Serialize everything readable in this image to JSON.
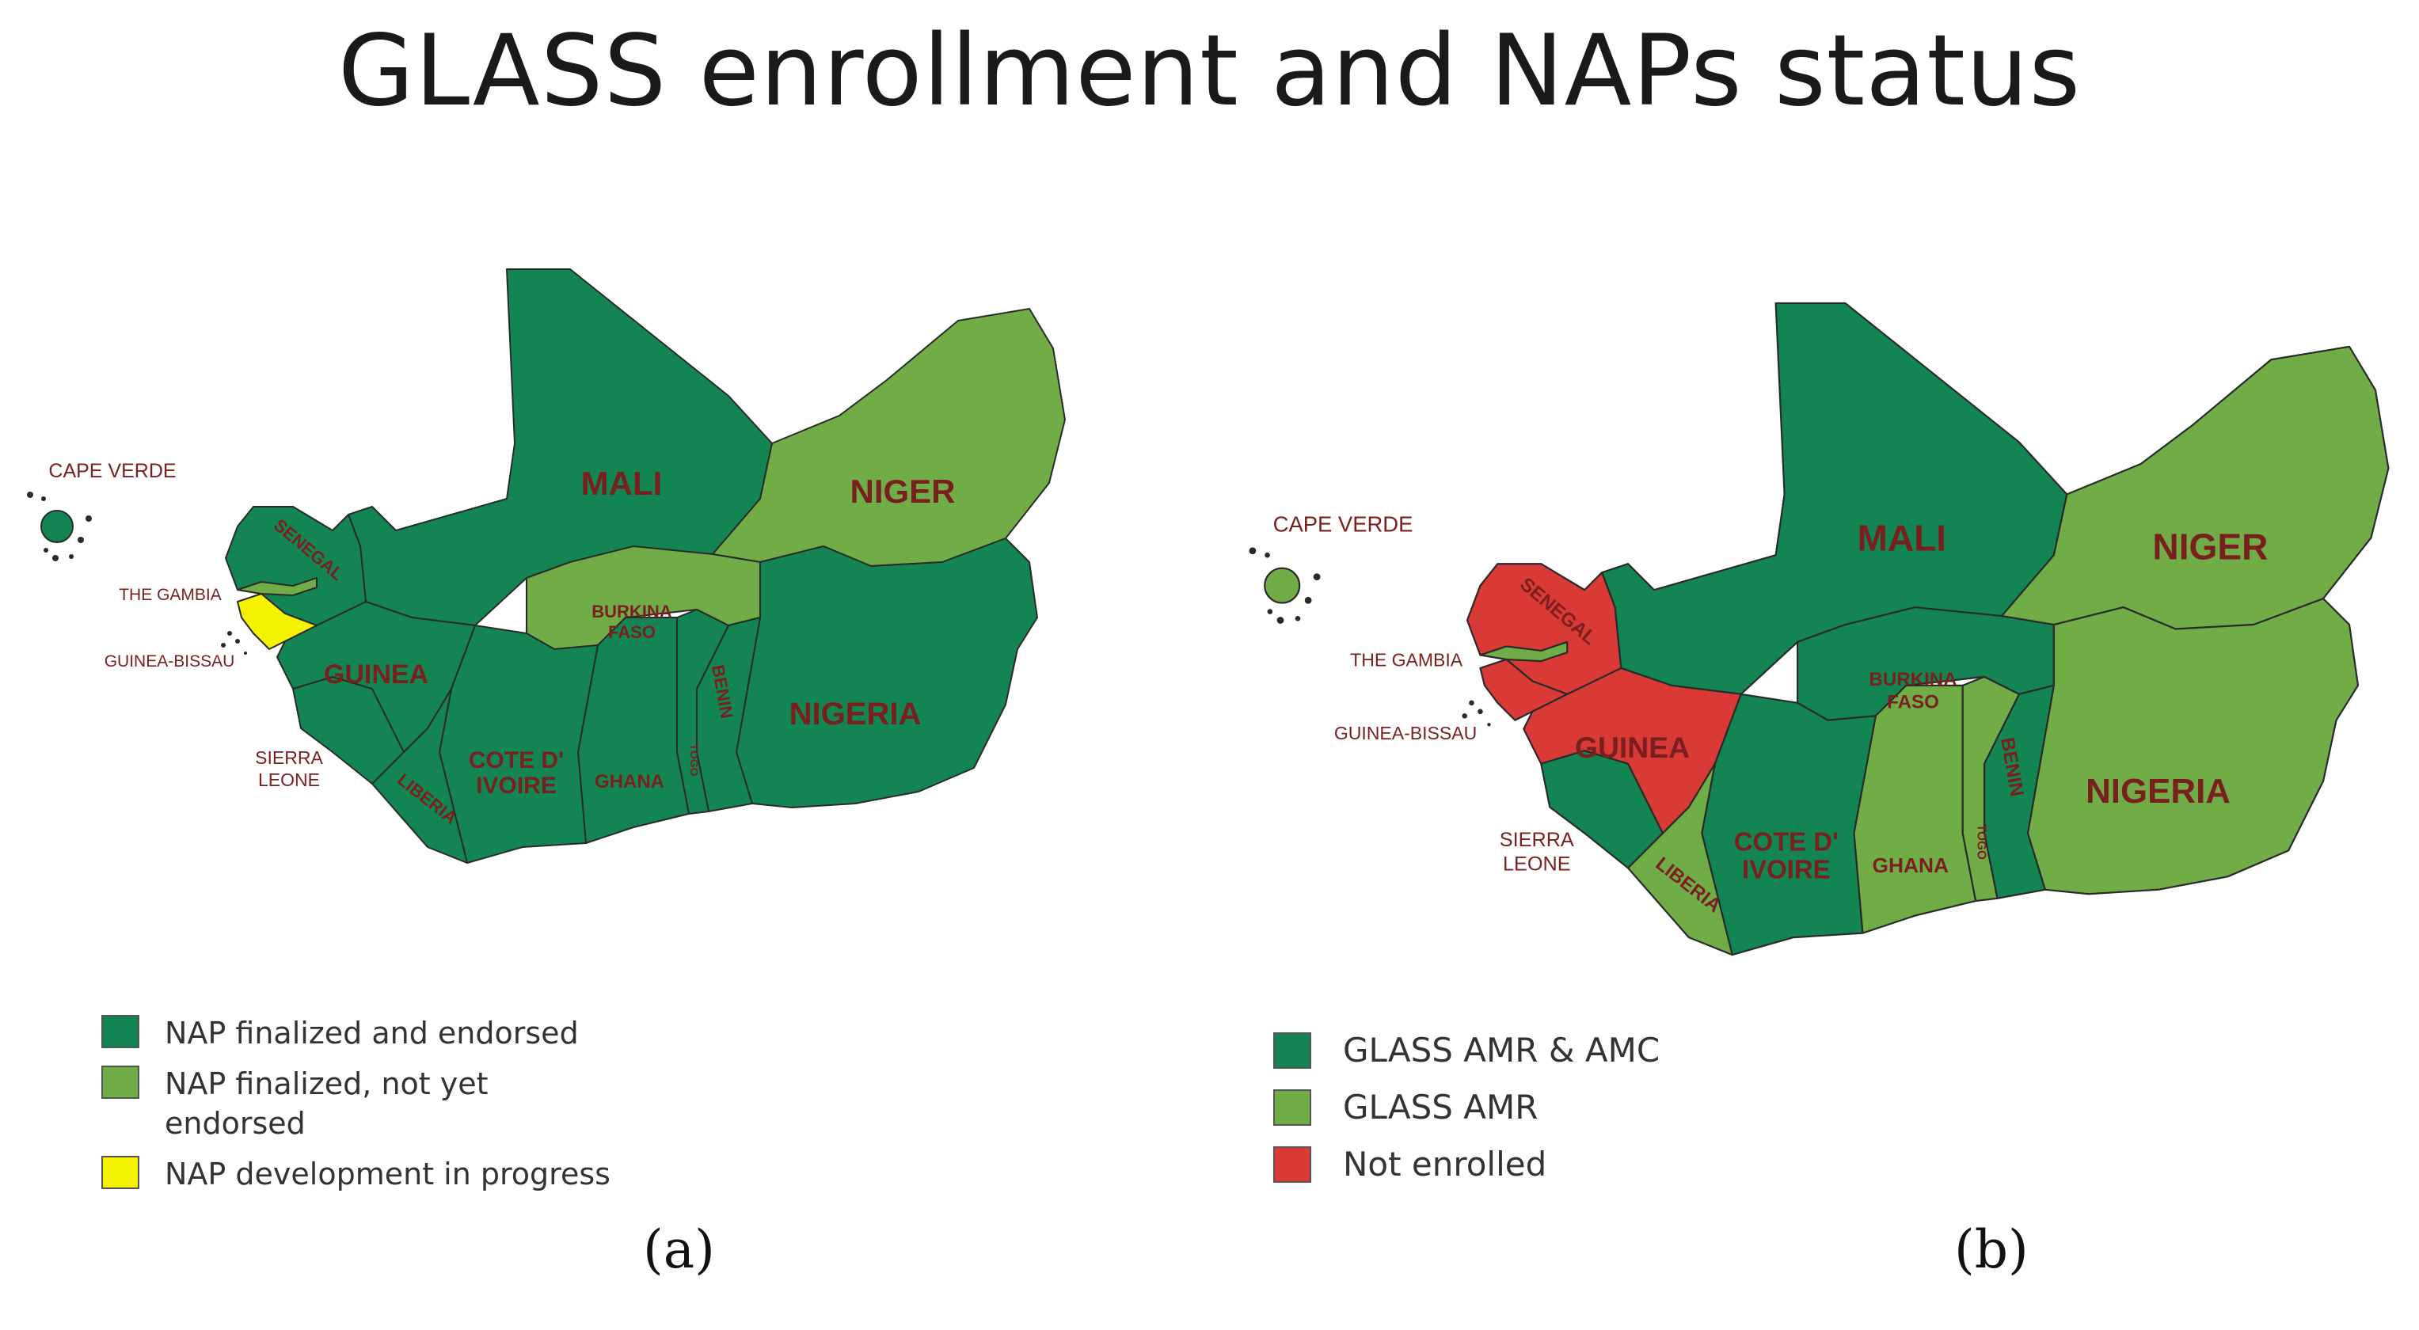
{
  "title": "GLASS enrollment and NAPs status",
  "colors": {
    "dark_green": "#128553",
    "light_green": "#71ad47",
    "yellow": "#f5f200",
    "red": "#d93a35",
    "label": "#7a1f1f"
  },
  "countries": {
    "mali": "MALI",
    "niger": "NIGER",
    "nigeria": "NIGERIA",
    "burkina": [
      "BURKINA",
      "FASO"
    ],
    "senegal": "SENEGAL",
    "gambia": "THE GAMBIA",
    "guinea_bissau": "GUINEA-BISSAU",
    "guinea": "GUINEA",
    "sierra_leone": [
      "SIERRA",
      "LEONE"
    ],
    "liberia": "LIBERIA",
    "cote": [
      "COTE D'",
      "IVOIRE"
    ],
    "ghana": "GHANA",
    "togo": "TOGO",
    "benin": "BENIN",
    "cape_verde": "CAPE VERDE"
  },
  "map_a": {
    "caption": "(a)",
    "status": {
      "mali": "dark_green",
      "niger": "light_green",
      "nigeria": "dark_green",
      "burkina": "light_green",
      "senegal": "dark_green",
      "gambia": "light_green",
      "guinea_bissau": "yellow",
      "guinea": "dark_green",
      "sierra_leone": "dark_green",
      "liberia": "dark_green",
      "cote": "dark_green",
      "ghana": "dark_green",
      "togo": "dark_green",
      "benin": "dark_green",
      "cape_verde": "dark_green"
    },
    "legend": [
      {
        "label": "NAP finalized and endorsed",
        "color": "#128553"
      },
      {
        "label": "NAP finalized, not yet endorsed",
        "color": "#71ad47"
      },
      {
        "label": "NAP development in progress",
        "color": "#f5f200"
      }
    ]
  },
  "map_b": {
    "caption": "(b)",
    "status": {
      "mali": "dark_green",
      "niger": "light_green",
      "nigeria": "light_green",
      "burkina": "dark_green",
      "senegal": "red",
      "gambia": "light_green",
      "guinea_bissau": "red",
      "guinea": "red",
      "sierra_leone": "dark_green",
      "liberia": "light_green",
      "cote": "dark_green",
      "ghana": "light_green",
      "togo": "light_green",
      "benin": "dark_green",
      "cape_verde": "light_green"
    },
    "legend": [
      {
        "label": "GLASS AMR & AMC",
        "color": "#128553"
      },
      {
        "label": "GLASS AMR",
        "color": "#71ad47"
      },
      {
        "label": "Not enrolled",
        "color": "#d93a35"
      }
    ]
  }
}
